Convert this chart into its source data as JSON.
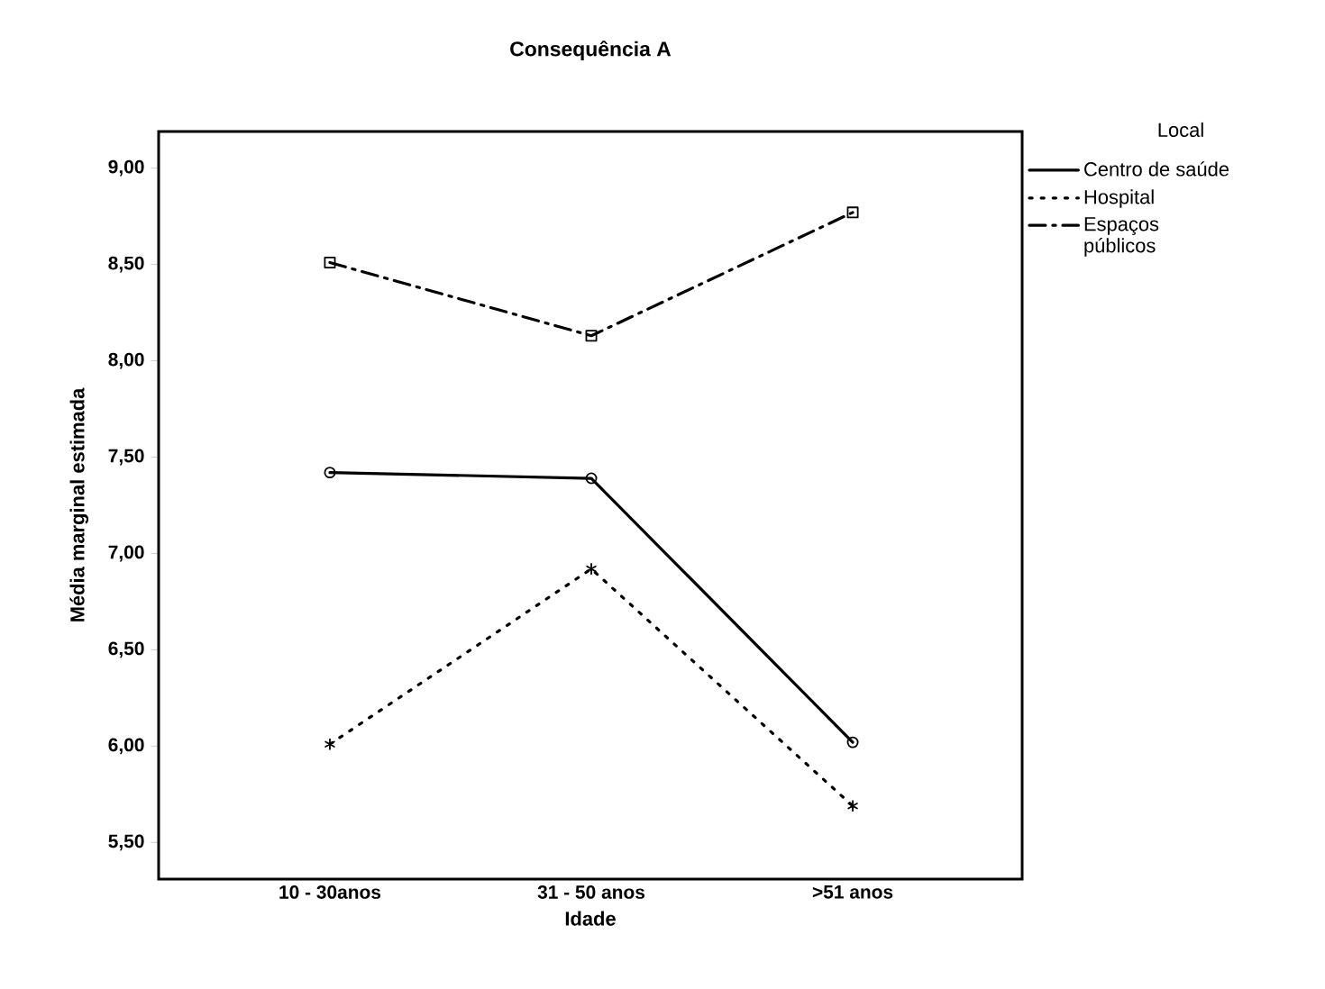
{
  "chart_data": {
    "type": "line",
    "title": "Consequência A",
    "xlabel": "Idade",
    "ylabel": "Média marginal estimada",
    "legend_title": "Local",
    "categories": [
      "10 - 30anos",
      "31 - 50 anos",
      ">51 anos"
    ],
    "series": [
      {
        "name": "Centro de saúde",
        "color": "#000000",
        "marker": "circle",
        "line_style": "solid",
        "values": [
          7.42,
          7.39,
          6.02
        ]
      },
      {
        "name": "Hospital",
        "color": "#000000",
        "marker": "cross",
        "line_style": "dotted",
        "values": [
          6.01,
          6.92,
          5.69
        ]
      },
      {
        "name": "Espaços públicos",
        "color": "#000000",
        "marker": "square",
        "line_style": "dashdot",
        "values": [
          8.51,
          8.13,
          8.77
        ]
      }
    ],
    "ylim": [
      5.31,
      9.19
    ],
    "yticks": [
      {
        "value": 5.5,
        "label": "5,50"
      },
      {
        "value": 6.0,
        "label": "6,00"
      },
      {
        "value": 6.5,
        "label": "6,50"
      },
      {
        "value": 7.0,
        "label": "7,00"
      },
      {
        "value": 7.5,
        "label": "7,50"
      },
      {
        "value": 8.0,
        "label": "8,00"
      },
      {
        "value": 8.5,
        "label": "8,50"
      },
      {
        "value": 9.0,
        "label": "9,00"
      }
    ],
    "legend": "top right",
    "grid": false
  }
}
